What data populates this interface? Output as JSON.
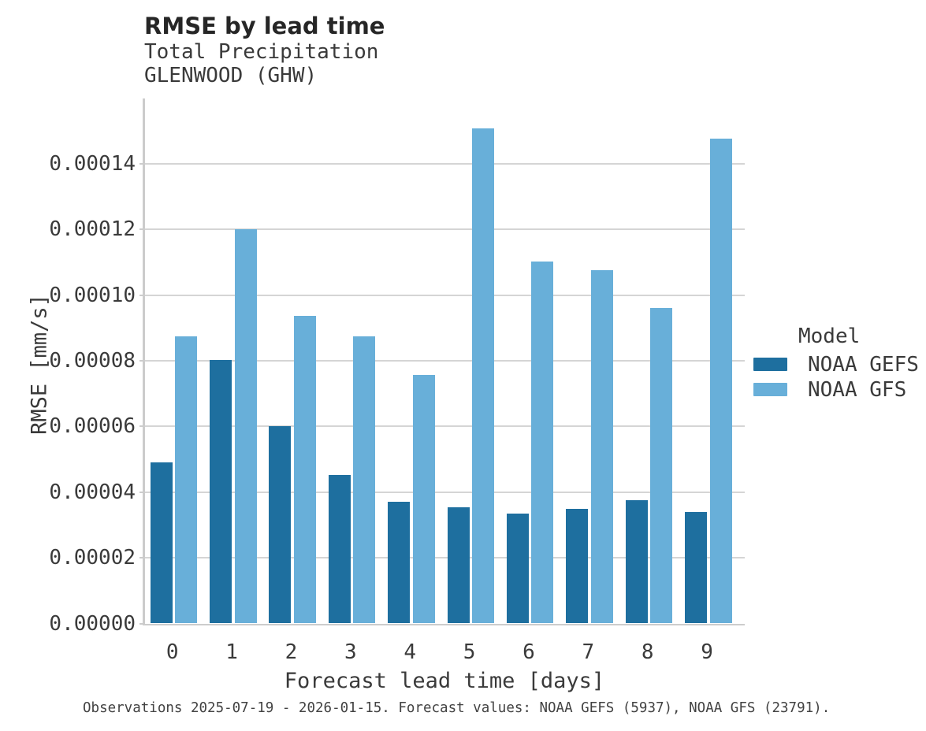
{
  "chart_data": {
    "type": "bar",
    "title": "RMSE by lead time",
    "subtitle_line1": "Total Precipitation",
    "subtitle_line2": "GLENWOOD (GHW)",
    "xlabel": "Forecast lead time [days]",
    "ylabel": "RMSE [mm/s]",
    "categories": [
      "0",
      "1",
      "2",
      "3",
      "4",
      "5",
      "6",
      "7",
      "8",
      "9"
    ],
    "series": [
      {
        "name": "NOAA GEFS",
        "color": "#1e6f9f",
        "values": [
          4.9e-05,
          8.02e-05,
          6e-05,
          4.52e-05,
          3.7e-05,
          3.53e-05,
          3.34e-05,
          3.5e-05,
          3.76e-05,
          3.4e-05
        ]
      },
      {
        "name": "NOAA GFS",
        "color": "#68afd9",
        "values": [
          8.74e-05,
          0.0001201,
          9.37e-05,
          8.74e-05,
          7.57e-05,
          0.0001509,
          0.0001102,
          0.0001076,
          9.61e-05,
          0.0001478
        ]
      }
    ],
    "ylim": [
      0,
      0.00016
    ],
    "y_ticks": [
      0,
      2e-05,
      4e-05,
      6e-05,
      8e-05,
      0.0001,
      0.00012,
      0.00014
    ],
    "y_tick_labels": [
      "0.00000",
      "0.00002",
      "0.00004",
      "0.00006",
      "0.00008",
      "0.00010",
      "0.00012",
      "0.00014"
    ],
    "grid": "horizontal",
    "legend": {
      "title": "Model",
      "position": "right"
    },
    "caption": "Observations 2025-07-19 - 2026-01-15. Forecast values: NOAA GEFS (5937), NOAA GFS (23791)."
  }
}
